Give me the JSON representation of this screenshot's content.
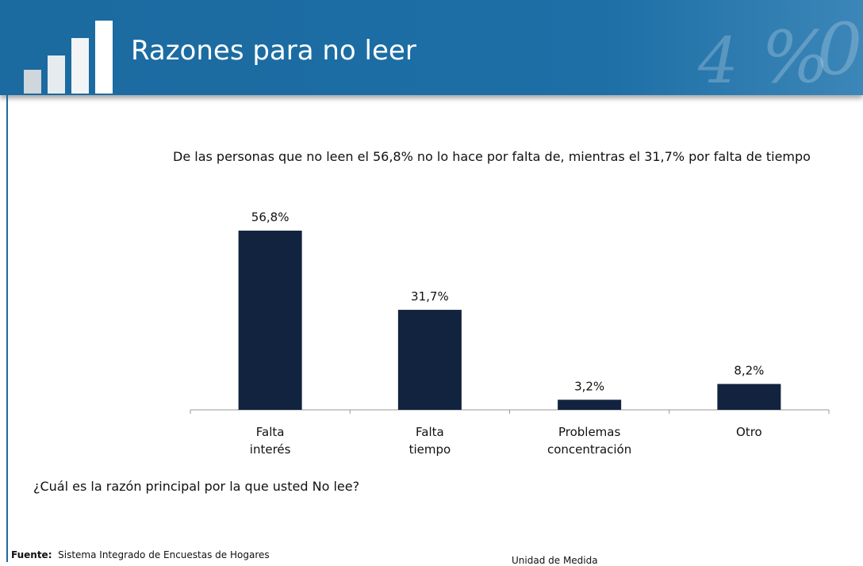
{
  "header": {
    "title": "Razones para no leer"
  },
  "chart_data": {
    "type": "bar",
    "subtitle": "De las personas que no leen el 56,8%  no lo hace por falta de, mientras el 31,7% por falta de tiempo",
    "categories": [
      "Falta interés",
      "Falta tiempo",
      "Problemas concentración",
      "Otro"
    ],
    "values": [
      56.8,
      31.7,
      3.2,
      8.2
    ],
    "value_labels": [
      "56,8%",
      "31,7%",
      "3,2%",
      "8,2%"
    ],
    "color": "#12233f"
  },
  "question": "¿Cuál es la razón principal por la que usted No lee?",
  "footer": {
    "source_label": "Fuente:",
    "source": "Sistema Integrado de Encuestas de Hogares",
    "unit": "Unidad de Medida"
  }
}
